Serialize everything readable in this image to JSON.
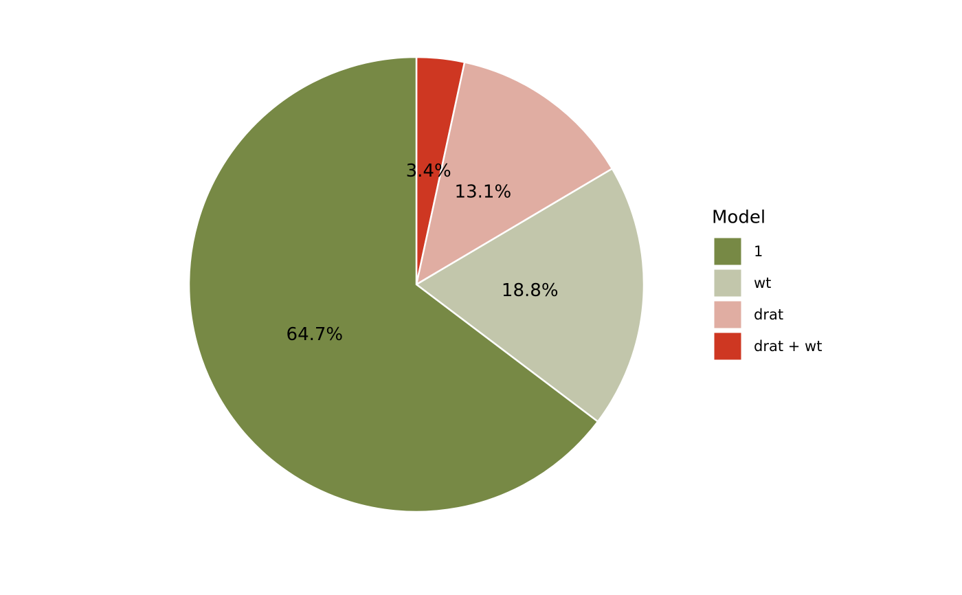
{
  "chart_data": {
    "type": "pie",
    "legend_title": "Model",
    "categories": [
      "1",
      "wt",
      "drat",
      "drat + wt"
    ],
    "values": [
      64.7,
      18.8,
      13.1,
      3.4
    ],
    "value_labels": [
      "64.7%",
      "18.8%",
      "13.1%",
      "3.4%"
    ],
    "colors": [
      "#778945",
      "#c2c6ab",
      "#e0ada2",
      "#ce3722"
    ],
    "legend": "right"
  }
}
